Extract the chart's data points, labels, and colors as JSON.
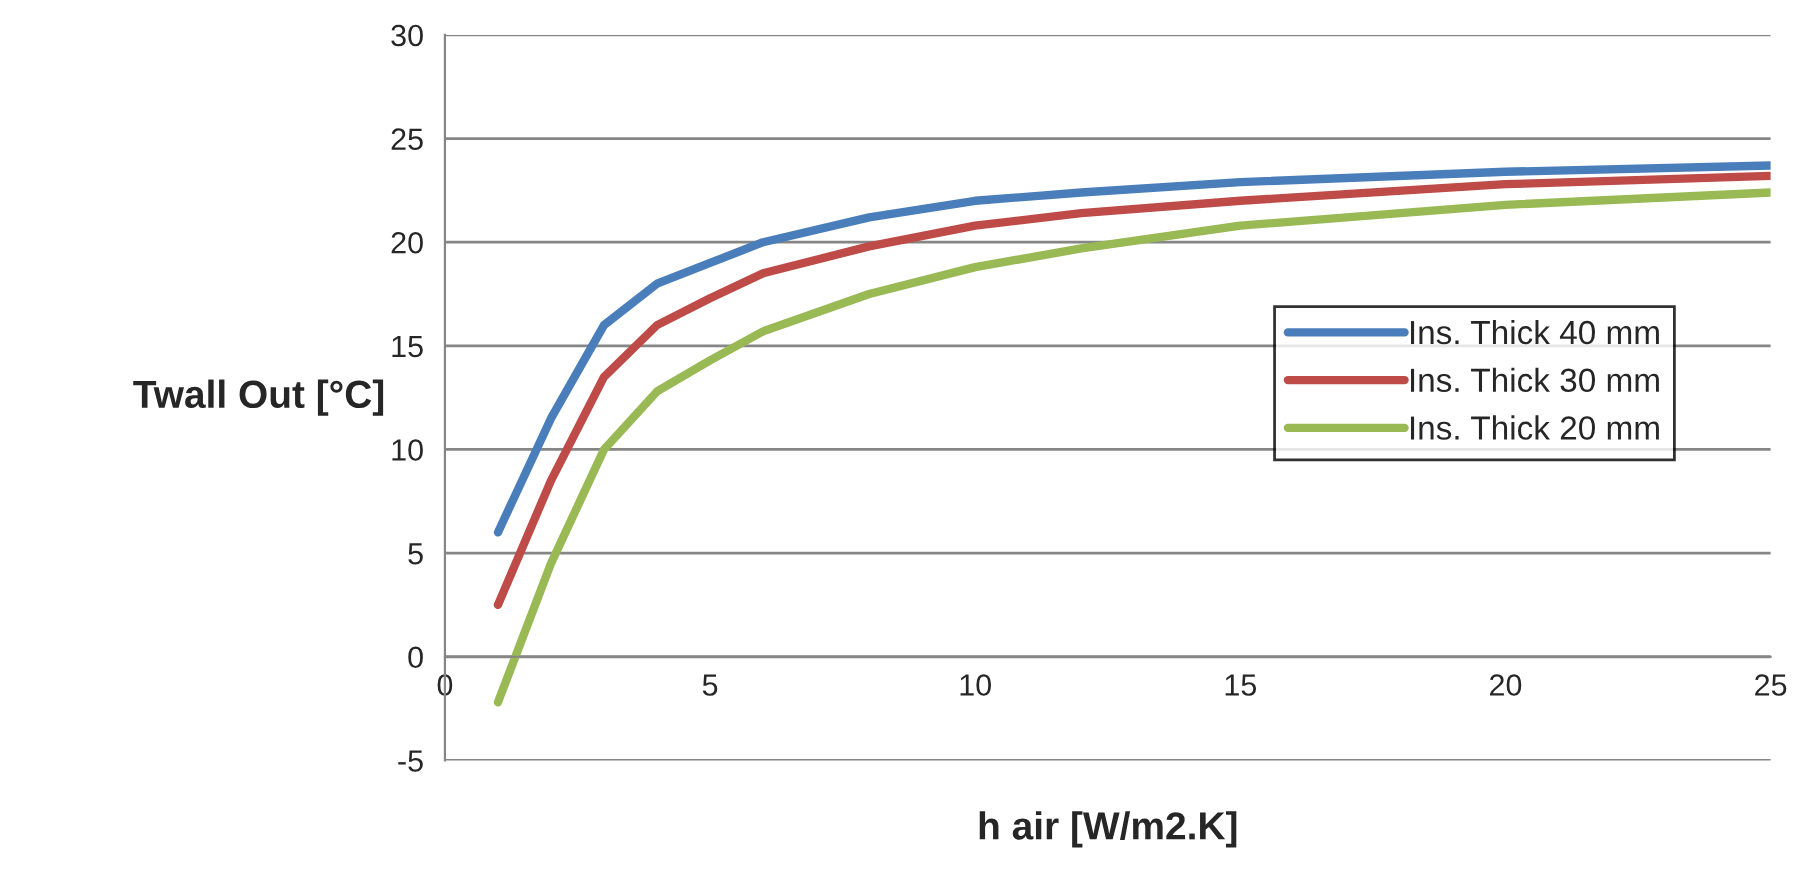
{
  "chart_data": {
    "type": "line",
    "xlabel": "h air [W/m2.K]",
    "ylabel": "Twall Out [°C]",
    "xlim": [
      0,
      25
    ],
    "xticks": [
      0,
      5,
      10,
      15,
      20,
      25
    ],
    "ylim": [
      -5,
      30
    ],
    "yticks": [
      -5,
      0,
      5,
      10,
      15,
      20,
      25,
      30
    ],
    "grid": "y",
    "legend": "right",
    "marker": "none",
    "line_style": "solid",
    "x": [
      1,
      2,
      3,
      4,
      5,
      6,
      8,
      10,
      12,
      15,
      20,
      25
    ],
    "series": [
      {
        "name": "Ins. Thick 40 mm",
        "color": "#4a7ebb",
        "values": [
          6,
          11.5,
          16,
          18,
          19,
          20,
          21.2,
          22,
          22.4,
          22.9,
          23.4,
          23.7
        ]
      },
      {
        "name": "Ins. Thick 30 mm",
        "color": "#be4b48",
        "values": [
          2.5,
          8.5,
          13.5,
          16,
          17.3,
          18.5,
          19.8,
          20.8,
          21.4,
          22,
          22.8,
          23.2
        ]
      },
      {
        "name": "Ins. Thick 20 mm",
        "color": "#98b954",
        "values": [
          -2.2,
          4.5,
          10,
          12.8,
          14.3,
          15.7,
          17.5,
          18.8,
          19.7,
          20.8,
          21.8,
          22.4
        ]
      }
    ]
  }
}
